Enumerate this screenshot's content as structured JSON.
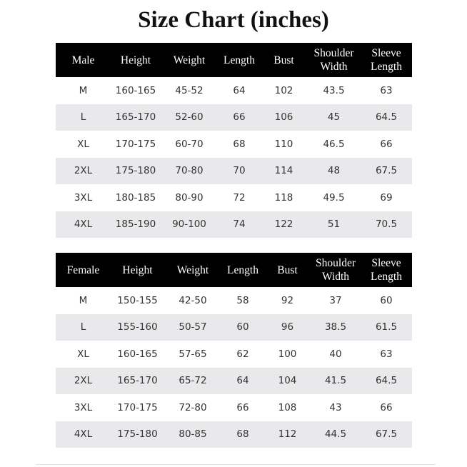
{
  "title": "Size Chart (inches)",
  "tables": [
    {
      "headers": [
        "Male",
        "Height",
        "Weight",
        "Length",
        "Bust",
        "Shoulder Width",
        "Sleeve Length"
      ],
      "rows": [
        [
          "M",
          "160-165",
          "45-52",
          "64",
          "102",
          "43.5",
          "63"
        ],
        [
          "L",
          "165-170",
          "52-60",
          "66",
          "106",
          "45",
          "64.5"
        ],
        [
          "XL",
          "170-175",
          "60-70",
          "68",
          "110",
          "46.5",
          "66"
        ],
        [
          "2XL",
          "175-180",
          "70-80",
          "70",
          "114",
          "48",
          "67.5"
        ],
        [
          "3XL",
          "180-185",
          "80-90",
          "72",
          "118",
          "49.5",
          "69"
        ],
        [
          "4XL",
          "185-190",
          "90-100",
          "74",
          "122",
          "51",
          "70.5"
        ]
      ]
    },
    {
      "headers": [
        "Female",
        "Height",
        "Weight",
        "Length",
        "Bust",
        "Shoulder Width",
        "Sleeve Length"
      ],
      "rows": [
        [
          "M",
          "150-155",
          "42-50",
          "58",
          "92",
          "37",
          "60"
        ],
        [
          "L",
          "155-160",
          "50-57",
          "60",
          "96",
          "38.5",
          "61.5"
        ],
        [
          "XL",
          "160-165",
          "57-65",
          "62",
          "100",
          "40",
          "63"
        ],
        [
          "2XL",
          "165-170",
          "65-72",
          "64",
          "104",
          "41.5",
          "64.5"
        ],
        [
          "3XL",
          "170-175",
          "72-80",
          "66",
          "108",
          "43",
          "66"
        ],
        [
          "4XL",
          "175-180",
          "80-85",
          "68",
          "112",
          "44.5",
          "67.5"
        ]
      ]
    }
  ],
  "colors": {
    "header_bg": "#000000",
    "header_text": "#ffffff",
    "stripe": "#e9e9eb"
  }
}
